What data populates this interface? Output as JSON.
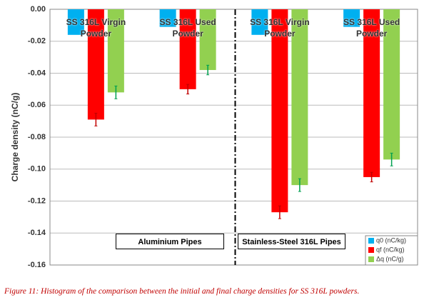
{
  "chart_data": {
    "type": "bar",
    "y_label": "Charge density (nC/g)",
    "categories": [
      "SS 316L Virgin Powder",
      "SS 316L Used Powder",
      "SS 316L Virgin Powder",
      "SS 316L Used Powder"
    ],
    "series": [
      {
        "name": "q0 (nC/kg)",
        "color": "#00b0f0",
        "values": [
          -0.016,
          -0.011,
          -0.016,
          -0.011
        ]
      },
      {
        "name": "qf (nC/kg)",
        "color": "#ff0000",
        "values": [
          -0.069,
          -0.05,
          -0.127,
          -0.105
        ],
        "errors": [
          0.004,
          0.003,
          0.004,
          0.003
        ]
      },
      {
        "name": "Δq (nC/g)",
        "color": "#92d050",
        "values": [
          -0.052,
          -0.038,
          -0.11,
          -0.094
        ],
        "errors": [
          0.004,
          0.003,
          0.004,
          0.004
        ]
      }
    ],
    "ylim": [
      -0.16,
      0
    ],
    "yticks": [
      {
        "value": 0,
        "label": "0.00"
      },
      {
        "value": -0.02,
        "label": "-0.02"
      },
      {
        "value": -0.04,
        "label": "-0.04"
      },
      {
        "value": -0.06,
        "label": "-0.06"
      },
      {
        "value": -0.08,
        "label": "-0.08"
      },
      {
        "value": -0.1,
        "label": "-0.10"
      },
      {
        "value": -0.12,
        "label": "-0.12"
      },
      {
        "value": -0.14,
        "label": "-0.14"
      },
      {
        "value": -0.16,
        "label": "-0.16"
      }
    ],
    "grid": true,
    "legend": "lower right",
    "annotations": [
      "Aluminium Pipes",
      "Stainless-Steel 316L Pipes"
    ],
    "caption": "Figure 11: Histogram of the comparison between the  initial and final charge densities for SS 316L  powders."
  }
}
